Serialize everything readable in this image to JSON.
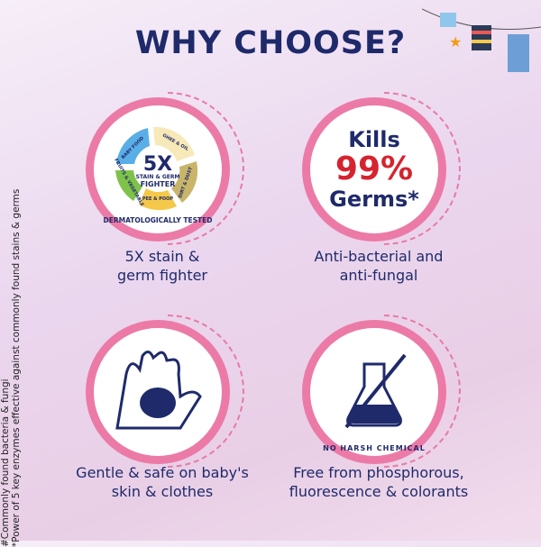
{
  "title": "WHY CHOOSE?",
  "features": [
    {
      "caption_line1": "5X stain &",
      "caption_line2": "germ fighter",
      "badge": {
        "center": "5X",
        "center_sub1": "STAIN & GERM",
        "center_sub2": "FIGHTER",
        "segments": [
          "BABY FOOD",
          "GHEE & OIL",
          "DIRT & DUST",
          "PEE & POOP",
          "FRUITS & VEGETABLE"
        ],
        "arc_text": "DERMATOLOGICALLY TESTED"
      }
    },
    {
      "caption_line1": "Anti-bacterial and",
      "caption_line2": "anti-fungal",
      "badge": {
        "line1": "Kills",
        "line2": "99%",
        "line3": "Germs*"
      }
    },
    {
      "caption_line1": "Gentle & safe on baby's",
      "caption_line2": "skin & clothes",
      "icon": "hand-holding-baby-icon"
    },
    {
      "caption_line1": "Free from phosphorous,",
      "caption_line2": "fluorescence & colorants",
      "badge": {
        "arc_text": "NO HARSH CHEMICAL"
      },
      "icon": "flask-icon"
    }
  ],
  "footnotes": [
    "#Commonly found bacteria & fungi",
    "*Power of 5 key enzymes effective against commonly found stains & germs"
  ],
  "colors": {
    "navy": "#1f2a6b",
    "pink": "#ec7aa7",
    "red": "#d6232f"
  }
}
